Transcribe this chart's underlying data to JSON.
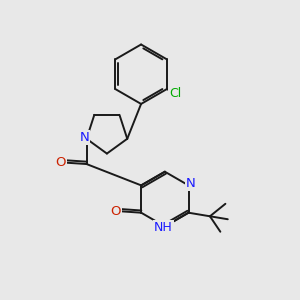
{
  "bg_color": "#e8e8e8",
  "atom_colors": {
    "N": "#1a1aff",
    "O": "#cc2200",
    "Cl": "#00aa00",
    "H": "#1a1aff"
  },
  "bond_color": "#1a1a1a",
  "bond_width": 1.4,
  "figsize": [
    3.0,
    3.0
  ],
  "dpi": 100
}
